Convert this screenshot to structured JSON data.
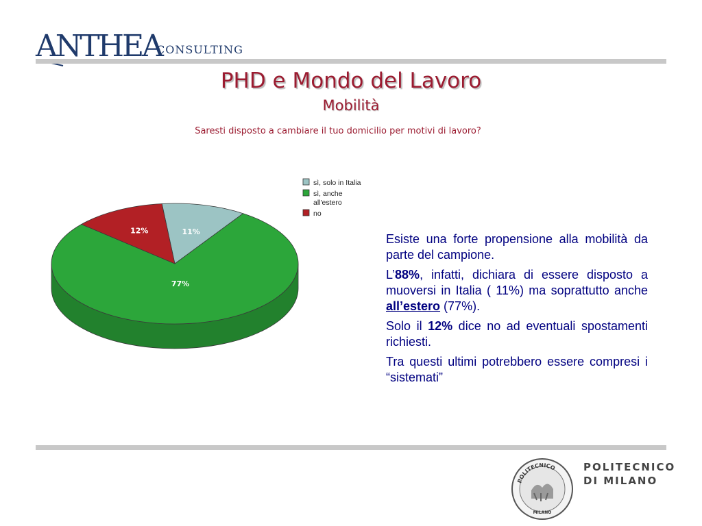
{
  "header": {
    "logo_word": "ANTHEA",
    "logo_sub": "CONSULTING",
    "title": "PHD e Mondo del Lavoro",
    "subtitle": "Mobilità",
    "question": "Saresti disposto a cambiare il tuo domicilio per motivi di lavoro?"
  },
  "colors": {
    "title": "#9b1b30",
    "body_text": "#000080",
    "rule": "#c8c8c8"
  },
  "chart_data": {
    "type": "pie",
    "title": "",
    "slices": [
      {
        "label": "sì, solo in Italia",
        "value": 11,
        "display": "11%",
        "color": "#9cc4c4"
      },
      {
        "label": "sì, anche all'estero",
        "value": 77,
        "display": "77%",
        "color": "#2ca63a"
      },
      {
        "label": "no",
        "value": 12,
        "display": "12%",
        "color": "#b22025"
      }
    ],
    "legend": {
      "position": "top-right",
      "entries": [
        {
          "lines": [
            "sì, solo in Italia"
          ],
          "color": "#9cc4c4"
        },
        {
          "lines": [
            "sì, anche",
            "all'estero"
          ],
          "color": "#2ca63a"
        },
        {
          "lines": [
            "no"
          ],
          "color": "#b22025"
        }
      ]
    }
  },
  "body": {
    "p1": "Esiste una forte propensione alla mobilità da parte del campione.",
    "p2_a": "L’",
    "p2_b": "88%",
    "p2_c": ", infatti, dichiara di essere disposto a muoversi in Italia ( 11%) ma soprattutto anche ",
    "p2_d": "all’estero",
    "p2_e": " (77%).",
    "p3_a": "Solo il ",
    "p3_b": "12%",
    "p3_c": " dice no ad eventuali spostamenti richiesti.",
    "p4": "Tra questi ultimi potrebbero essere compresi i “sistemati”"
  },
  "footer": {
    "poli_line1": "POLITECNICO",
    "poli_line2": "DI MILANO",
    "seal_top": "POLITECNICO",
    "seal_bottom": "MILANO"
  }
}
